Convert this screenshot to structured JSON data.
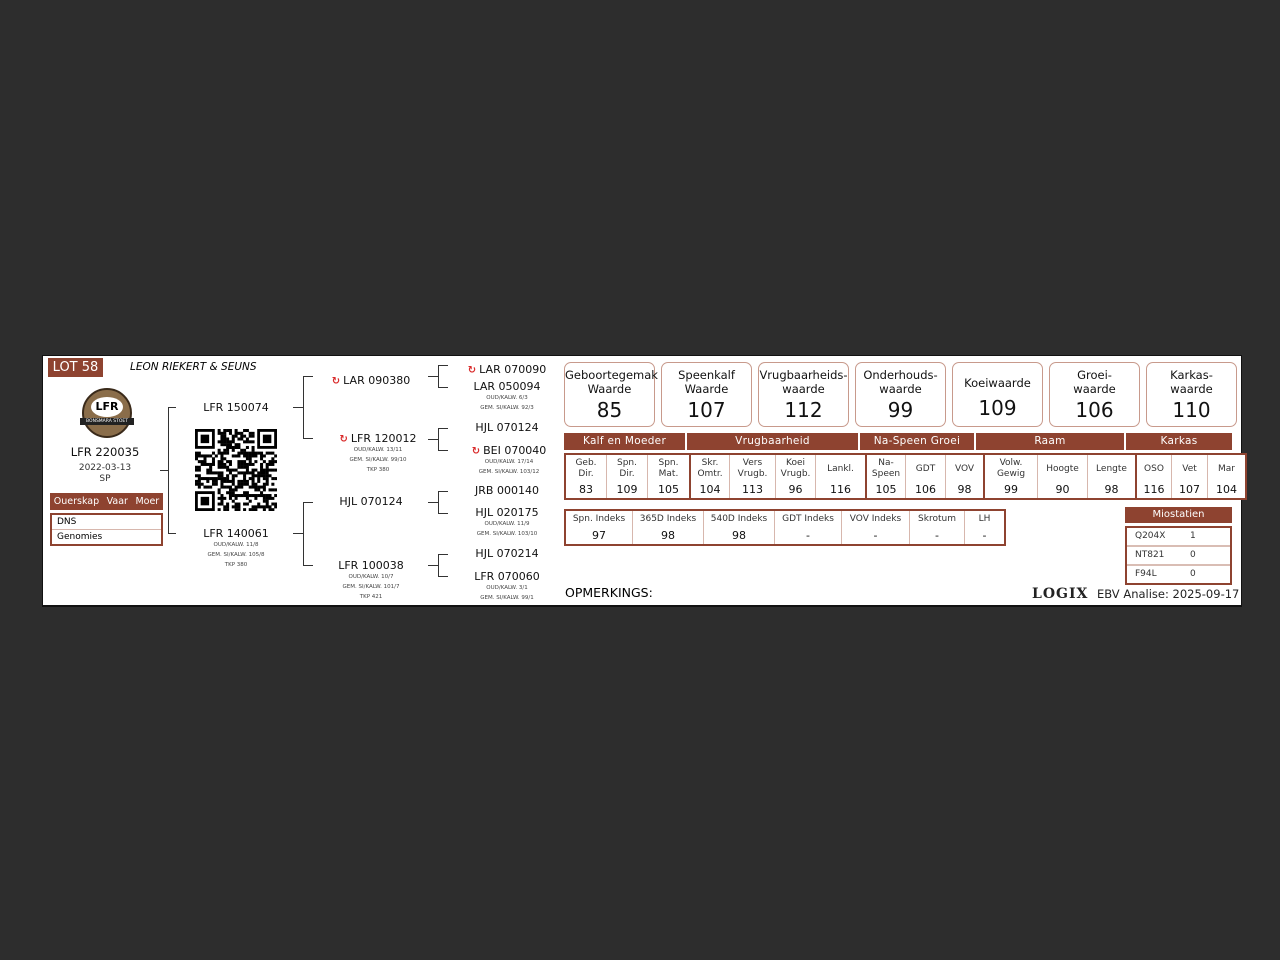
{
  "header": {
    "lot": "LOT 58",
    "owner": "LEON RIEKERT & SEUNS"
  },
  "logo": {
    "text": "LFR",
    "ring_text": "BONSMARA STOET"
  },
  "animal": {
    "id": "LFR 220035",
    "date": "2022-03-13",
    "sex": "SP"
  },
  "parentage": {
    "headers": [
      "Ouerskap",
      "Vaar",
      "Moer"
    ],
    "rows": [
      "DNS",
      "Genomies"
    ]
  },
  "pedigree": {
    "sire": {
      "id": "LFR 150074"
    },
    "dam": {
      "id": "LFR 140061",
      "sub": [
        "OUD/KALW. 11/8",
        "GEM. SI/KALW. 105/8",
        "TKP 380"
      ]
    },
    "ss": {
      "id": "LAR 090380",
      "mark": true
    },
    "sd": {
      "id": "LFR 120012",
      "mark": true,
      "sub": [
        "OUD/KALW. 13/11",
        "GEM. SI/KALW. 99/10",
        "TKP 380"
      ]
    },
    "ds": {
      "id": "HJL 070124"
    },
    "dd": {
      "id": "LFR 100038",
      "sub": [
        "OUD/KALW. 10/7",
        "GEM. SI/KALW. 101/7",
        "TKP 421"
      ]
    },
    "sss": {
      "id": "LAR 070090",
      "mark": true
    },
    "ssd": {
      "id": "LAR 050094",
      "sub": [
        "OUD/KALW. 6/3",
        "GEM. SI/KALW. 92/3"
      ]
    },
    "sds": {
      "id": "HJL 070124"
    },
    "sdd": {
      "id": "BEI 070040",
      "mark": true,
      "sub": [
        "OUD/KALW. 17/14",
        "GEM. SI/KALW. 103/12"
      ]
    },
    "dss": {
      "id": "JRB 000140"
    },
    "dsd": {
      "id": "HJL 020175",
      "sub": [
        "OUD/KALW. 11/9",
        "GEM. SI/KALW. 103/10"
      ]
    },
    "dds": {
      "id": "HJL 070214"
    },
    "ddd": {
      "id": "LFR 070060",
      "sub": [
        "OUD/KALW. 3/1",
        "GEM. SI/KALW. 99/1"
      ]
    }
  },
  "values": [
    {
      "l1": "Geboortegemak",
      "l2": "Waarde",
      "v": "85"
    },
    {
      "l1": "Speenkalf",
      "l2": "Waarde",
      "v": "107"
    },
    {
      "l1": "Vrugbaarheids-",
      "l2": "waarde",
      "v": "112"
    },
    {
      "l1": "Onderhouds-",
      "l2": "waarde",
      "v": "99"
    },
    {
      "l1": "Koeiwaarde",
      "l2": "",
      "v": "109"
    },
    {
      "l1": "Groei-",
      "l2": "waarde",
      "v": "106"
    },
    {
      "l1": "Karkas-",
      "l2": "waarde",
      "v": "110"
    }
  ],
  "sections": [
    "Kalf en Moeder",
    "Vrugbaarheid",
    "Na-Speen Groei",
    "Raam",
    "Karkas"
  ],
  "traits": [
    {
      "l1": "Geb.",
      "l2": "Dir.",
      "v": "83"
    },
    {
      "l1": "Spn.",
      "l2": "Dir.",
      "v": "109"
    },
    {
      "l1": "Spn.",
      "l2": "Mat.",
      "v": "105"
    },
    {
      "l1": "Skr.",
      "l2": "Omtr.",
      "v": "104"
    },
    {
      "l1": "Vers",
      "l2": "Vrugb.",
      "v": "113"
    },
    {
      "l1": "Koei",
      "l2": "Vrugb.",
      "v": "96"
    },
    {
      "l1": "Lankl.",
      "l2": "",
      "v": "116"
    },
    {
      "l1": "Na-",
      "l2": "Speen",
      "v": "105"
    },
    {
      "l1": "GDT",
      "l2": "",
      "v": "106"
    },
    {
      "l1": "VOV",
      "l2": "",
      "v": "98"
    },
    {
      "l1": "Volw.",
      "l2": "Gewig",
      "v": "99"
    },
    {
      "l1": "Hoogte",
      "l2": "",
      "v": "90"
    },
    {
      "l1": "Lengte",
      "l2": "",
      "v": "98"
    },
    {
      "l1": "OSO",
      "l2": "",
      "v": "116"
    },
    {
      "l1": "Vet",
      "l2": "",
      "v": "107"
    },
    {
      "l1": "Mar",
      "l2": "",
      "v": "104"
    }
  ],
  "indexes": [
    {
      "l": "Spn. Indeks",
      "v": "97"
    },
    {
      "l": "365D Indeks",
      "v": "98"
    },
    {
      "l": "540D Indeks",
      "v": "98"
    },
    {
      "l": "GDT Indeks",
      "v": "-"
    },
    {
      "l": "VOV Indeks",
      "v": "-"
    },
    {
      "l": "Skrotum",
      "v": "-"
    },
    {
      "l": "LH",
      "v": "-"
    }
  ],
  "myostatin": {
    "title": "Miostatien",
    "rows": [
      {
        "k": "Q204X",
        "v": "1"
      },
      {
        "k": "NT821",
        "v": "0"
      },
      {
        "k": "F94L",
        "v": "0"
      }
    ]
  },
  "footer": {
    "remarks": "OPMERKINGS:",
    "brand": "LOGIX",
    "analysis": "EBV Analise: 2025-09-17"
  },
  "colors": {
    "brand": "#8e4330",
    "background": "#2d2d2d",
    "mark": "#d92a2a"
  }
}
